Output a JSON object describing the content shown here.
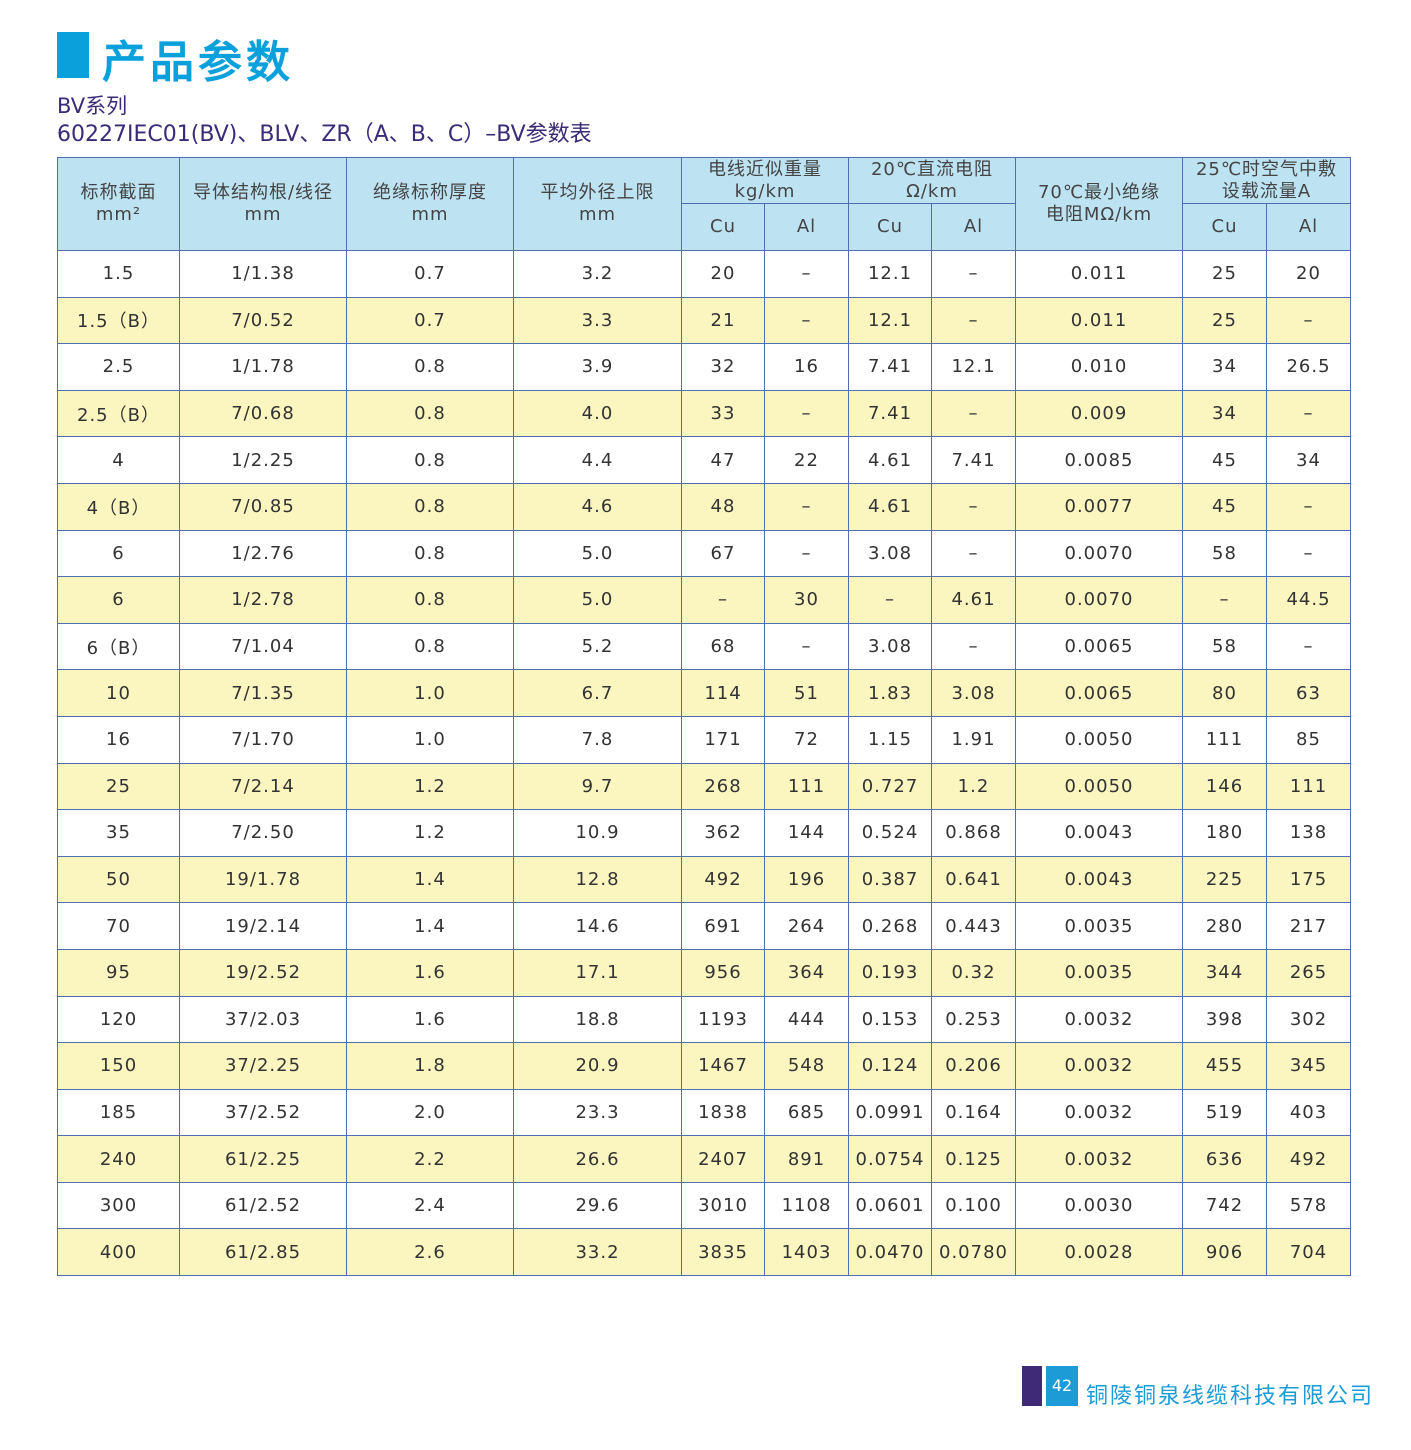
{
  "header": {
    "title": "产品参数",
    "series": "BV系列",
    "subtitle": "60227IEC01(BV)、BLV、ZR（A、B、C）–BV参数表",
    "accent": "#0aa0dc"
  },
  "table": {
    "headers": {
      "nominal_section": [
        "标称截面",
        "mm²"
      ],
      "conductor": [
        "导体结构根/线径",
        "mm"
      ],
      "insulation": [
        "绝缘标称厚度",
        "mm"
      ],
      "outer_diameter": [
        "平均外径上限",
        "mm"
      ],
      "weight": [
        "电线近似重量",
        "kg/km"
      ],
      "resistance": [
        "20℃直流电阻",
        "Ω/km"
      ],
      "insulation_resistance": [
        "70℃最小绝缘",
        "电阻MΩ/km"
      ],
      "current": [
        "25℃时空气中敷",
        "设载流量A"
      ],
      "cu": "Cu",
      "al": "Al"
    },
    "rows": [
      [
        "1.5",
        "1/1.38",
        "0.7",
        "3.2",
        "20",
        "–",
        "12.1",
        "–",
        "0.011",
        "25",
        "20"
      ],
      [
        "1.5（B）",
        "7/0.52",
        "0.7",
        "3.3",
        "21",
        "–",
        "12.1",
        "–",
        "0.011",
        "25",
        "–"
      ],
      [
        "2.5",
        "1/1.78",
        "0.8",
        "3.9",
        "32",
        "16",
        "7.41",
        "12.1",
        "0.010",
        "34",
        "26.5"
      ],
      [
        "2.5（B）",
        "7/0.68",
        "0.8",
        "4.0",
        "33",
        "–",
        "7.41",
        "–",
        "0.009",
        "34",
        "–"
      ],
      [
        "4",
        "1/2.25",
        "0.8",
        "4.4",
        "47",
        "22",
        "4.61",
        "7.41",
        "0.0085",
        "45",
        "34"
      ],
      [
        "4（B）",
        "7/0.85",
        "0.8",
        "4.6",
        "48",
        "–",
        "4.61",
        "–",
        "0.0077",
        "45",
        "–"
      ],
      [
        "6",
        "1/2.76",
        "0.8",
        "5.0",
        "67",
        "–",
        "3.08",
        "–",
        "0.0070",
        "58",
        "–"
      ],
      [
        "6",
        "1/2.78",
        "0.8",
        "5.0",
        "–",
        "30",
        "–",
        "4.61",
        "0.0070",
        "–",
        "44.5"
      ],
      [
        "6（B）",
        "7/1.04",
        "0.8",
        "5.2",
        "68",
        "–",
        "3.08",
        "–",
        "0.0065",
        "58",
        "–"
      ],
      [
        "10",
        "7/1.35",
        "1.0",
        "6.7",
        "114",
        "51",
        "1.83",
        "3.08",
        "0.0065",
        "80",
        "63"
      ],
      [
        "16",
        "7/1.70",
        "1.0",
        "7.8",
        "171",
        "72",
        "1.15",
        "1.91",
        "0.0050",
        "111",
        "85"
      ],
      [
        "25",
        "7/2.14",
        "1.2",
        "9.7",
        "268",
        "111",
        "0.727",
        "1.2",
        "0.0050",
        "146",
        "111"
      ],
      [
        "35",
        "7/2.50",
        "1.2",
        "10.9",
        "362",
        "144",
        "0.524",
        "0.868",
        "0.0043",
        "180",
        "138"
      ],
      [
        "50",
        "19/1.78",
        "1.4",
        "12.8",
        "492",
        "196",
        "0.387",
        "0.641",
        "0.0043",
        "225",
        "175"
      ],
      [
        "70",
        "19/2.14",
        "1.4",
        "14.6",
        "691",
        "264",
        "0.268",
        "0.443",
        "0.0035",
        "280",
        "217"
      ],
      [
        "95",
        "19/2.52",
        "1.6",
        "17.1",
        "956",
        "364",
        "0.193",
        "0.32",
        "0.0035",
        "344",
        "265"
      ],
      [
        "120",
        "37/2.03",
        "1.6",
        "18.8",
        "1193",
        "444",
        "0.153",
        "0.253",
        "0.0032",
        "398",
        "302"
      ],
      [
        "150",
        "37/2.25",
        "1.8",
        "20.9",
        "1467",
        "548",
        "0.124",
        "0.206",
        "0.0032",
        "455",
        "345"
      ],
      [
        "185",
        "37/2.52",
        "2.0",
        "23.3",
        "1838",
        "685",
        "0.0991",
        "0.164",
        "0.0032",
        "519",
        "403"
      ],
      [
        "240",
        "61/2.25",
        "2.2",
        "26.6",
        "2407",
        "891",
        "0.0754",
        "0.125",
        "0.0032",
        "636",
        "492"
      ],
      [
        "300",
        "61/2.52",
        "2.4",
        "29.6",
        "3010",
        "1108",
        "0.0601",
        "0.100",
        "0.0030",
        "742",
        "578"
      ],
      [
        "400",
        "61/2.85",
        "2.6",
        "33.2",
        "3835",
        "1403",
        "0.0470",
        "0.0780",
        "0.0028",
        "906",
        "704"
      ]
    ]
  },
  "footer": {
    "page": "42",
    "company": "铜陵铜泉线缆科技有限公司"
  }
}
